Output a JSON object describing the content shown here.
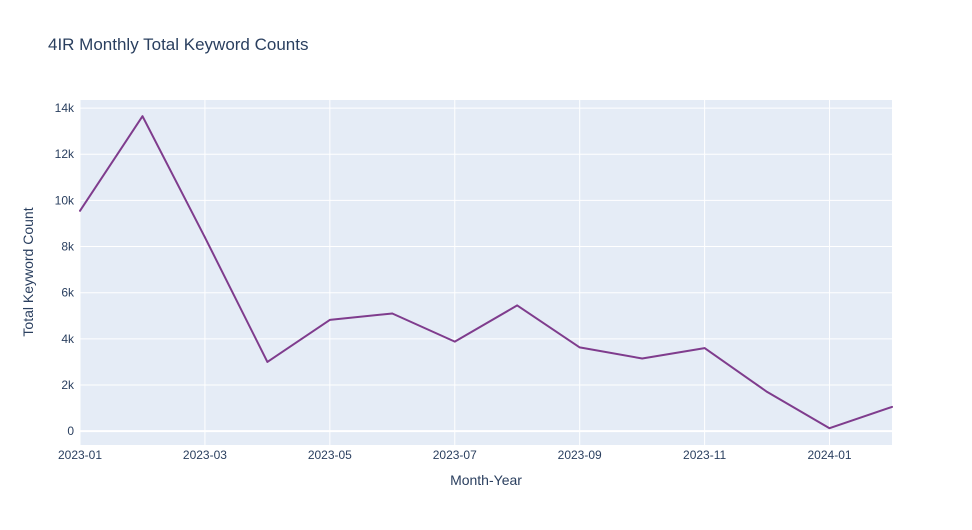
{
  "chart_data": {
    "type": "line",
    "title": "4IR Monthly Total Keyword Counts",
    "xlabel": "Month-Year",
    "ylabel": "Total Keyword Count",
    "x": [
      "2023-01",
      "2023-02",
      "2023-03",
      "2023-04",
      "2023-05",
      "2023-06",
      "2023-07",
      "2023-08",
      "2023-09",
      "2023-10",
      "2023-11",
      "2023-12",
      "2024-01",
      "2024-02"
    ],
    "series": [
      {
        "values": [
          9550,
          13650,
          8400,
          3000,
          4820,
          5100,
          3880,
          5450,
          3630,
          3150,
          3600,
          1700,
          130,
          1050
        ],
        "color": "#7f3c8d"
      }
    ],
    "xlim": [
      "2023-01",
      "2024-02"
    ],
    "ylim": [
      -600,
      14350
    ],
    "x_ticks": [
      "2023-01",
      "2023-03",
      "2023-05",
      "2023-07",
      "2023-09",
      "2023-11",
      "2024-01"
    ],
    "y_ticks": [
      0,
      2000,
      4000,
      6000,
      8000,
      10000,
      12000,
      14000
    ],
    "y_tick_labels": [
      "0",
      "2k",
      "4k",
      "6k",
      "8k",
      "10k",
      "12k",
      "14k"
    ],
    "grid": true,
    "plot_bg": "#e5ecf6",
    "text_color": "#2a3f5f"
  }
}
